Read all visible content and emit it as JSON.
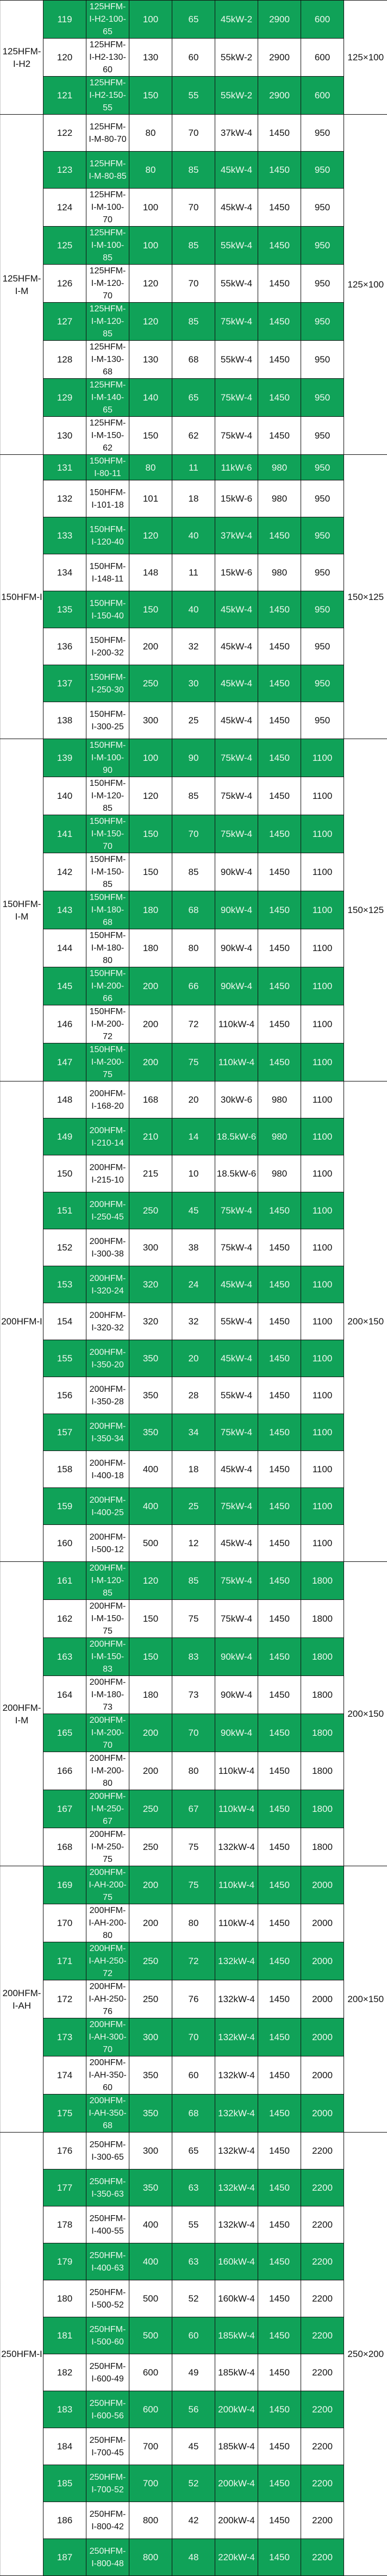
{
  "table": {
    "colors": {
      "green_row": "#10a258",
      "white_row": "#ffffff"
    },
    "groups": [
      {
        "name": "125HFM-I-H2",
        "size": "125×100",
        "rows": [
          [
            "119",
            "125HFM-I-H2-100-65",
            "100",
            "65",
            "45kW-2",
            "2900",
            "600"
          ],
          [
            "120",
            "125HFM-I-H2-130-60",
            "130",
            "60",
            "55kW-2",
            "2900",
            "600"
          ],
          [
            "121",
            "125HFM-I-H2-150-55",
            "150",
            "55",
            "55kW-2",
            "2900",
            "600"
          ]
        ]
      },
      {
        "name": "125HFM-I-M",
        "size": "125×100",
        "rows": [
          [
            "122",
            "125HFM-I-M-80-70",
            "80",
            "70",
            "37kW-4",
            "1450",
            "950"
          ],
          [
            "123",
            "125HFM-I-M-80-85",
            "80",
            "85",
            "45kW-4",
            "1450",
            "950"
          ],
          [
            "124",
            "125HFM-I-M-100-70",
            "100",
            "70",
            "45kW-4",
            "1450",
            "950"
          ],
          [
            "125",
            "125HFM-I-M-100-85",
            "100",
            "85",
            "55kW-4",
            "1450",
            "950"
          ],
          [
            "126",
            "125HFM-I-M-120-70",
            "120",
            "70",
            "55kW-4",
            "1450",
            "950"
          ],
          [
            "127",
            "125HFM-I-M-120-85",
            "120",
            "85",
            "75kW-4",
            "1450",
            "950"
          ],
          [
            "128",
            "125HFM-I-M-130-68",
            "130",
            "68",
            "55kW-4",
            "1450",
            "950"
          ],
          [
            "129",
            "125HFM-I-M-140-65",
            "140",
            "65",
            "75kW-4",
            "1450",
            "950"
          ],
          [
            "130",
            "125HFM-I-M-150-62",
            "150",
            "62",
            "75kW-4",
            "1450",
            "950"
          ]
        ]
      },
      {
        "name": "150HFM-I",
        "size": "150×125",
        "rows": [
          [
            "131",
            "150HFM-I-80-11",
            "80",
            "11",
            "11kW-6",
            "980",
            "950"
          ],
          [
            "132",
            "150HFM-I-101-18",
            "101",
            "18",
            "15kW-6",
            "980",
            "950"
          ],
          [
            "133",
            "150HFM-I-120-40",
            "120",
            "40",
            "37kW-4",
            "1450",
            "950"
          ],
          [
            "134",
            "150HFM-I-148-11",
            "148",
            "11",
            "15kW-6",
            "980",
            "950"
          ],
          [
            "135",
            "150HFM-I-150-40",
            "150",
            "40",
            "45kW-4",
            "1450",
            "950"
          ],
          [
            "136",
            "150HFM-I-200-32",
            "200",
            "32",
            "45kW-4",
            "1450",
            "950"
          ],
          [
            "137",
            "150HFM-I-250-30",
            "250",
            "30",
            "45kW-4",
            "1450",
            "950"
          ],
          [
            "138",
            "150HFM-I-300-25",
            "300",
            "25",
            "45kW-4",
            "1450",
            "950"
          ]
        ]
      },
      {
        "name": "150HFM-I-M",
        "size": "150×125",
        "rows": [
          [
            "139",
            "150HFM-I-M-100-90",
            "100",
            "90",
            "75kW-4",
            "1450",
            "1100"
          ],
          [
            "140",
            "150HFM-I-M-120-85",
            "120",
            "85",
            "75kW-4",
            "1450",
            "1100"
          ],
          [
            "141",
            "150HFM-I-M-150-70",
            "150",
            "70",
            "75kW-4",
            "1450",
            "1100"
          ],
          [
            "142",
            "150HFM-I-M-150-85",
            "150",
            "85",
            "90kW-4",
            "1450",
            "1100"
          ],
          [
            "143",
            "150HFM-I-M-180-68",
            "180",
            "68",
            "90kW-4",
            "1450",
            "1100"
          ],
          [
            "144",
            "150HFM-I-M-180-80",
            "180",
            "80",
            "90kW-4",
            "1450",
            "1100"
          ],
          [
            "145",
            "150HFM-I-M-200-66",
            "200",
            "66",
            "90kW-4",
            "1450",
            "1100"
          ],
          [
            "146",
            "150HFM-I-M-200-72",
            "200",
            "72",
            "110kW-4",
            "1450",
            "1100"
          ],
          [
            "147",
            "150HFM-I-M-200-75",
            "200",
            "75",
            "110kW-4",
            "1450",
            "1100"
          ]
        ]
      },
      {
        "name": "200HFM-I",
        "size": "200×150",
        "rows": [
          [
            "148",
            "200HFM-I-168-20",
            "168",
            "20",
            "30kW-6",
            "980",
            "1100"
          ],
          [
            "149",
            "200HFM-I-210-14",
            "210",
            "14",
            "18.5kW-6",
            "980",
            "1100"
          ],
          [
            "150",
            "200HFM-I-215-10",
            "215",
            "10",
            "18.5kW-6",
            "980",
            "1100"
          ],
          [
            "151",
            "200HFM-I-250-45",
            "250",
            "45",
            "75kW-4",
            "1450",
            "1100"
          ],
          [
            "152",
            "200HFM-I-300-38",
            "300",
            "38",
            "75kW-4",
            "1450",
            "1100"
          ],
          [
            "153",
            "200HFM-I-320-24",
            "320",
            "24",
            "45kW-4",
            "1450",
            "1100"
          ],
          [
            "154",
            "200HFM-I-320-32",
            "320",
            "32",
            "55kW-4",
            "1450",
            "1100"
          ],
          [
            "155",
            "200HFM-I-350-20",
            "350",
            "20",
            "45kW-4",
            "1450",
            "1100"
          ],
          [
            "156",
            "200HFM-I-350-28",
            "350",
            "28",
            "55kW-4",
            "1450",
            "1100"
          ],
          [
            "157",
            "200HFM-I-350-34",
            "350",
            "34",
            "75kW-4",
            "1450",
            "1100"
          ],
          [
            "158",
            "200HFM-I-400-18",
            "400",
            "18",
            "45kW-4",
            "1450",
            "1100"
          ],
          [
            "159",
            "200HFM-I-400-25",
            "400",
            "25",
            "75kW-4",
            "1450",
            "1100"
          ],
          [
            "160",
            "200HFM-I-500-12",
            "500",
            "12",
            "45kW-4",
            "1450",
            "1100"
          ]
        ]
      },
      {
        "name": "200HFM-I-M",
        "size": "200×150",
        "rows": [
          [
            "161",
            "200HFM-I-M-120-85",
            "120",
            "85",
            "75kW-4",
            "1450",
            "1800"
          ],
          [
            "162",
            "200HFM-I-M-150-75",
            "150",
            "75",
            "75kW-4",
            "1450",
            "1800"
          ],
          [
            "163",
            "200HFM-I-M-150-83",
            "150",
            "83",
            "90kW-4",
            "1450",
            "1800"
          ],
          [
            "164",
            "200HFM-I-M-180-73",
            "180",
            "73",
            "90kW-4",
            "1450",
            "1800"
          ],
          [
            "165",
            "200HFM-I-M-200-70",
            "200",
            "70",
            "90kW-4",
            "1450",
            "1800"
          ],
          [
            "166",
            "200HFM-I-M-200-80",
            "200",
            "80",
            "110kW-4",
            "1450",
            "1800"
          ],
          [
            "167",
            "200HFM-I-M-250-67",
            "250",
            "67",
            "110kW-4",
            "1450",
            "1800"
          ],
          [
            "168",
            "200HFM-I-M-250-75",
            "250",
            "75",
            "132kW-4",
            "1450",
            "1800"
          ]
        ]
      },
      {
        "name": "200HFM-I-AH",
        "size": "200×150",
        "rows": [
          [
            "169",
            "200HFM-I-AH-200-75",
            "200",
            "75",
            "110kW-4",
            "1450",
            "2000"
          ],
          [
            "170",
            "200HFM-I-AH-200-80",
            "200",
            "80",
            "110kW-4",
            "1450",
            "2000"
          ],
          [
            "171",
            "200HFM-I-AH-250-72",
            "250",
            "72",
            "132kW-4",
            "1450",
            "2000"
          ],
          [
            "172",
            "200HFM-I-AH-250-76",
            "250",
            "76",
            "132kW-4",
            "1450",
            "2000"
          ],
          [
            "173",
            "200HFM-I-AH-300-70",
            "300",
            "70",
            "132kW-4",
            "1450",
            "2000"
          ],
          [
            "174",
            "200HFM-I-AH-350-60",
            "350",
            "60",
            "132kW-4",
            "1450",
            "2000"
          ],
          [
            "175",
            "200HFM-I-AH-350-68",
            "350",
            "68",
            "132kW-4",
            "1450",
            "2000"
          ]
        ]
      },
      {
        "name": "250HFM-I",
        "size": "250×200",
        "rows": [
          [
            "176",
            "250HFM-I-300-65",
            "300",
            "65",
            "132kW-4",
            "1450",
            "2200"
          ],
          [
            "177",
            "250HFM-I-350-63",
            "350",
            "63",
            "132kW-4",
            "1450",
            "2200"
          ],
          [
            "178",
            "250HFM-I-400-55",
            "400",
            "55",
            "132kW-4",
            "1450",
            "2200"
          ],
          [
            "179",
            "250HFM-I-400-63",
            "400",
            "63",
            "160kW-4",
            "1450",
            "2200"
          ],
          [
            "180",
            "250HFM-I-500-52",
            "500",
            "52",
            "160kW-4",
            "1450",
            "2200"
          ],
          [
            "181",
            "250HFM-I-500-60",
            "500",
            "60",
            "185kW-4",
            "1450",
            "2200"
          ],
          [
            "182",
            "250HFM-I-600-49",
            "600",
            "49",
            "185kW-4",
            "1450",
            "2200"
          ],
          [
            "183",
            "250HFM-I-600-56",
            "600",
            "56",
            "200kW-4",
            "1450",
            "2200"
          ],
          [
            "184",
            "250HFM-I-700-45",
            "700",
            "45",
            "185kW-4",
            "1450",
            "2200"
          ],
          [
            "185",
            "250HFM-I-700-52",
            "700",
            "52",
            "200kW-4",
            "1450",
            "2200"
          ],
          [
            "186",
            "250HFM-I-800-42",
            "800",
            "42",
            "200kW-4",
            "1450",
            "2200"
          ],
          [
            "187",
            "250HFM-I-800-48",
            "800",
            "48",
            "220kW-4",
            "1450",
            "2200"
          ]
        ]
      }
    ]
  }
}
